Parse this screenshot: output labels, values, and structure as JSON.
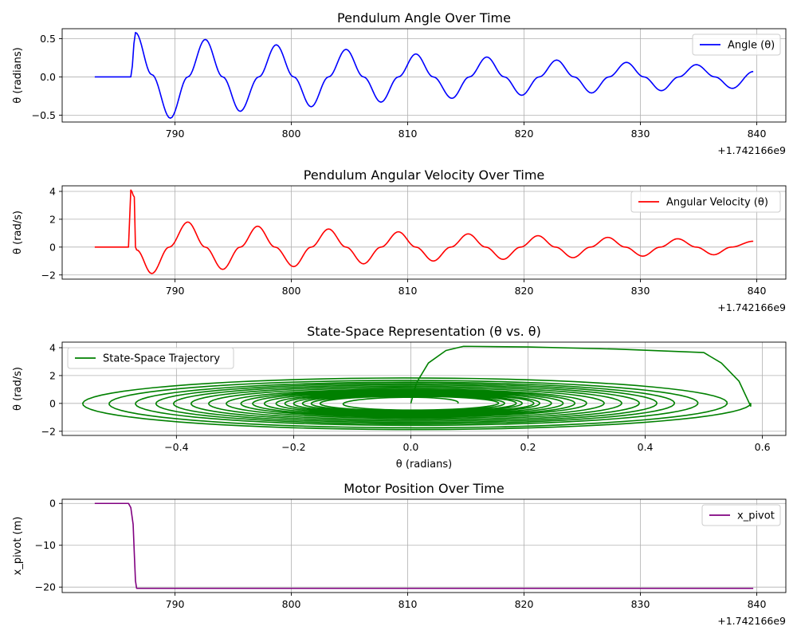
{
  "figure": {
    "background": "#ffffff",
    "grid_color": "#b0b0b0"
  },
  "chart_data": [
    {
      "type": "line",
      "title": "Pendulum Angle Over Time",
      "xlabel": "",
      "ylabel": "θ (radians)",
      "x_offset_label": "+1.742166e9",
      "xlim": [
        780.3,
        842.5
      ],
      "ylim": [
        -0.59,
        0.63
      ],
      "xticks": [
        790,
        800,
        810,
        820,
        830,
        840
      ],
      "yticks": [
        -0.5,
        0.0,
        0.5
      ],
      "xtick_labels": [
        "790",
        "800",
        "810",
        "820",
        "830",
        "840"
      ],
      "ytick_labels": [
        "−0.5",
        "0.0",
        "0.5"
      ],
      "grid": true,
      "legend": "upper right",
      "series": [
        {
          "name": "Angle (θ)",
          "color": "#0000ff",
          "x": [
            783.1,
            786.2,
            786.6,
            788.0,
            789.6,
            791.1,
            792.6,
            794.1,
            795.6,
            797.2,
            798.7,
            800.2,
            801.7,
            803.2,
            804.7,
            806.2,
            807.7,
            809.2,
            810.7,
            812.2,
            813.8,
            815.3,
            816.8,
            818.3,
            819.8,
            821.3,
            822.8,
            824.3,
            825.8,
            827.3,
            828.8,
            830.3,
            831.8,
            833.3,
            834.8,
            836.4,
            837.9,
            839.7
          ],
          "y": [
            0.0,
            0.0,
            0.58,
            0.03,
            -0.54,
            0.0,
            0.49,
            0.0,
            -0.45,
            0.0,
            0.42,
            0.0,
            -0.39,
            0.0,
            0.36,
            0.0,
            -0.33,
            0.0,
            0.3,
            0.0,
            -0.28,
            0.0,
            0.26,
            0.0,
            -0.24,
            0.0,
            0.22,
            0.0,
            -0.21,
            0.0,
            0.19,
            0.0,
            -0.18,
            0.0,
            0.16,
            0.0,
            -0.15,
            0.07
          ]
        }
      ]
    },
    {
      "type": "line",
      "title": "Pendulum Angular Velocity Over Time",
      "xlabel": "",
      "ylabel": "θ (rad/s)",
      "x_offset_label": "+1.742166e9",
      "xlim": [
        780.3,
        842.5
      ],
      "ylim": [
        -2.3,
        4.4
      ],
      "xticks": [
        790,
        800,
        810,
        820,
        830,
        840
      ],
      "yticks": [
        -2,
        0,
        2,
        4
      ],
      "xtick_labels": [
        "790",
        "800",
        "810",
        "820",
        "830",
        "840"
      ],
      "ytick_labels": [
        "−2",
        "0",
        "2",
        "4"
      ],
      "grid": true,
      "legend": "upper right",
      "series": [
        {
          "name": "Angular Velocity (θ)",
          "color": "#ff0000",
          "x": [
            783.1,
            786.0,
            786.2,
            786.5,
            786.6,
            786.7,
            788.0,
            789.5,
            791.1,
            792.6,
            794.1,
            795.6,
            797.1,
            798.6,
            800.2,
            801.7,
            803.2,
            804.7,
            806.2,
            807.7,
            809.2,
            810.7,
            812.2,
            813.7,
            815.2,
            816.7,
            818.2,
            819.7,
            821.2,
            822.7,
            824.2,
            825.7,
            827.2,
            828.7,
            830.2,
            831.7,
            833.2,
            834.8,
            836.3,
            837.8,
            839.7
          ],
          "y": [
            0.0,
            0.0,
            4.1,
            3.6,
            0.0,
            -0.2,
            -1.9,
            0.0,
            1.8,
            0.0,
            -1.6,
            0.0,
            1.5,
            0.0,
            -1.4,
            0.0,
            1.3,
            0.0,
            -1.2,
            0.0,
            1.1,
            0.0,
            -1.0,
            0.0,
            0.95,
            0.0,
            -0.88,
            0.0,
            0.82,
            0.0,
            -0.76,
            0.0,
            0.7,
            0.0,
            -0.65,
            0.0,
            0.6,
            0.0,
            -0.55,
            0.0,
            0.42
          ]
        }
      ]
    },
    {
      "type": "line",
      "title": "State-Space Representation (θ vs. θ)",
      "xlabel": "θ (radians)",
      "ylabel": "θ (rad/s)",
      "xlim": [
        -0.595,
        0.64
      ],
      "ylim": [
        -2.3,
        4.4
      ],
      "xticks": [
        -0.4,
        -0.2,
        0.0,
        0.2,
        0.4,
        0.6
      ],
      "yticks": [
        -2,
        0,
        2,
        4
      ],
      "xtick_labels": [
        "−0.4",
        "−0.2",
        "0.0",
        "0.2",
        "0.4",
        "0.6"
      ],
      "ytick_labels": [
        "−2",
        "0",
        "2",
        "4"
      ],
      "grid": true,
      "legend": "upper left",
      "series": [
        {
          "name": "State-Space Trajectory",
          "color": "#008000",
          "spiral_start": {
            "x": [
              0.0,
              0.01,
              0.03,
              0.06,
              0.09,
              0.2,
              0.35,
              0.5,
              0.53,
              0.56,
              0.58
            ],
            "y": [
              0.0,
              1.5,
              2.9,
              3.8,
              4.1,
              4.05,
              3.9,
              3.65,
              2.9,
              1.6,
              -0.2
            ]
          },
          "spiral_amplitudes": {
            "theta": [
              0.58,
              0.54,
              0.49,
              0.45,
              0.42,
              0.39,
              0.36,
              0.33,
              0.3,
              0.28,
              0.26,
              0.24,
              0.22,
              0.21,
              0.19,
              0.18,
              0.16,
              0.15,
              0.08
            ],
            "omega": [
              1.9,
              1.8,
              1.6,
              1.5,
              1.4,
              1.3,
              1.2,
              1.1,
              1.0,
              0.95,
              0.88,
              0.82,
              0.76,
              0.7,
              0.65,
              0.6,
              0.55,
              0.5,
              0.42
            ]
          }
        }
      ]
    },
    {
      "type": "line",
      "title": "Motor Position Over Time",
      "xlabel": "",
      "ylabel": "x_pivot (m)",
      "x_offset_label": "+1.742166e9",
      "xlim": [
        780.3,
        842.5
      ],
      "ylim": [
        -21.3,
        1.0
      ],
      "xticks": [
        790,
        800,
        810,
        820,
        830,
        840
      ],
      "yticks": [
        -20,
        -10,
        0
      ],
      "xtick_labels": [
        "790",
        "800",
        "810",
        "820",
        "830",
        "840"
      ],
      "ytick_labels": [
        "−20",
        "−10",
        "0"
      ],
      "grid": true,
      "legend": "upper right",
      "series": [
        {
          "name": "x_pivot",
          "color": "#800080",
          "x": [
            783.1,
            786.0,
            786.2,
            786.4,
            786.5,
            786.6,
            786.7,
            839.7
          ],
          "y": [
            0.0,
            0.0,
            -1.0,
            -5.0,
            -12.0,
            -18.5,
            -20.3,
            -20.3
          ]
        }
      ]
    }
  ]
}
